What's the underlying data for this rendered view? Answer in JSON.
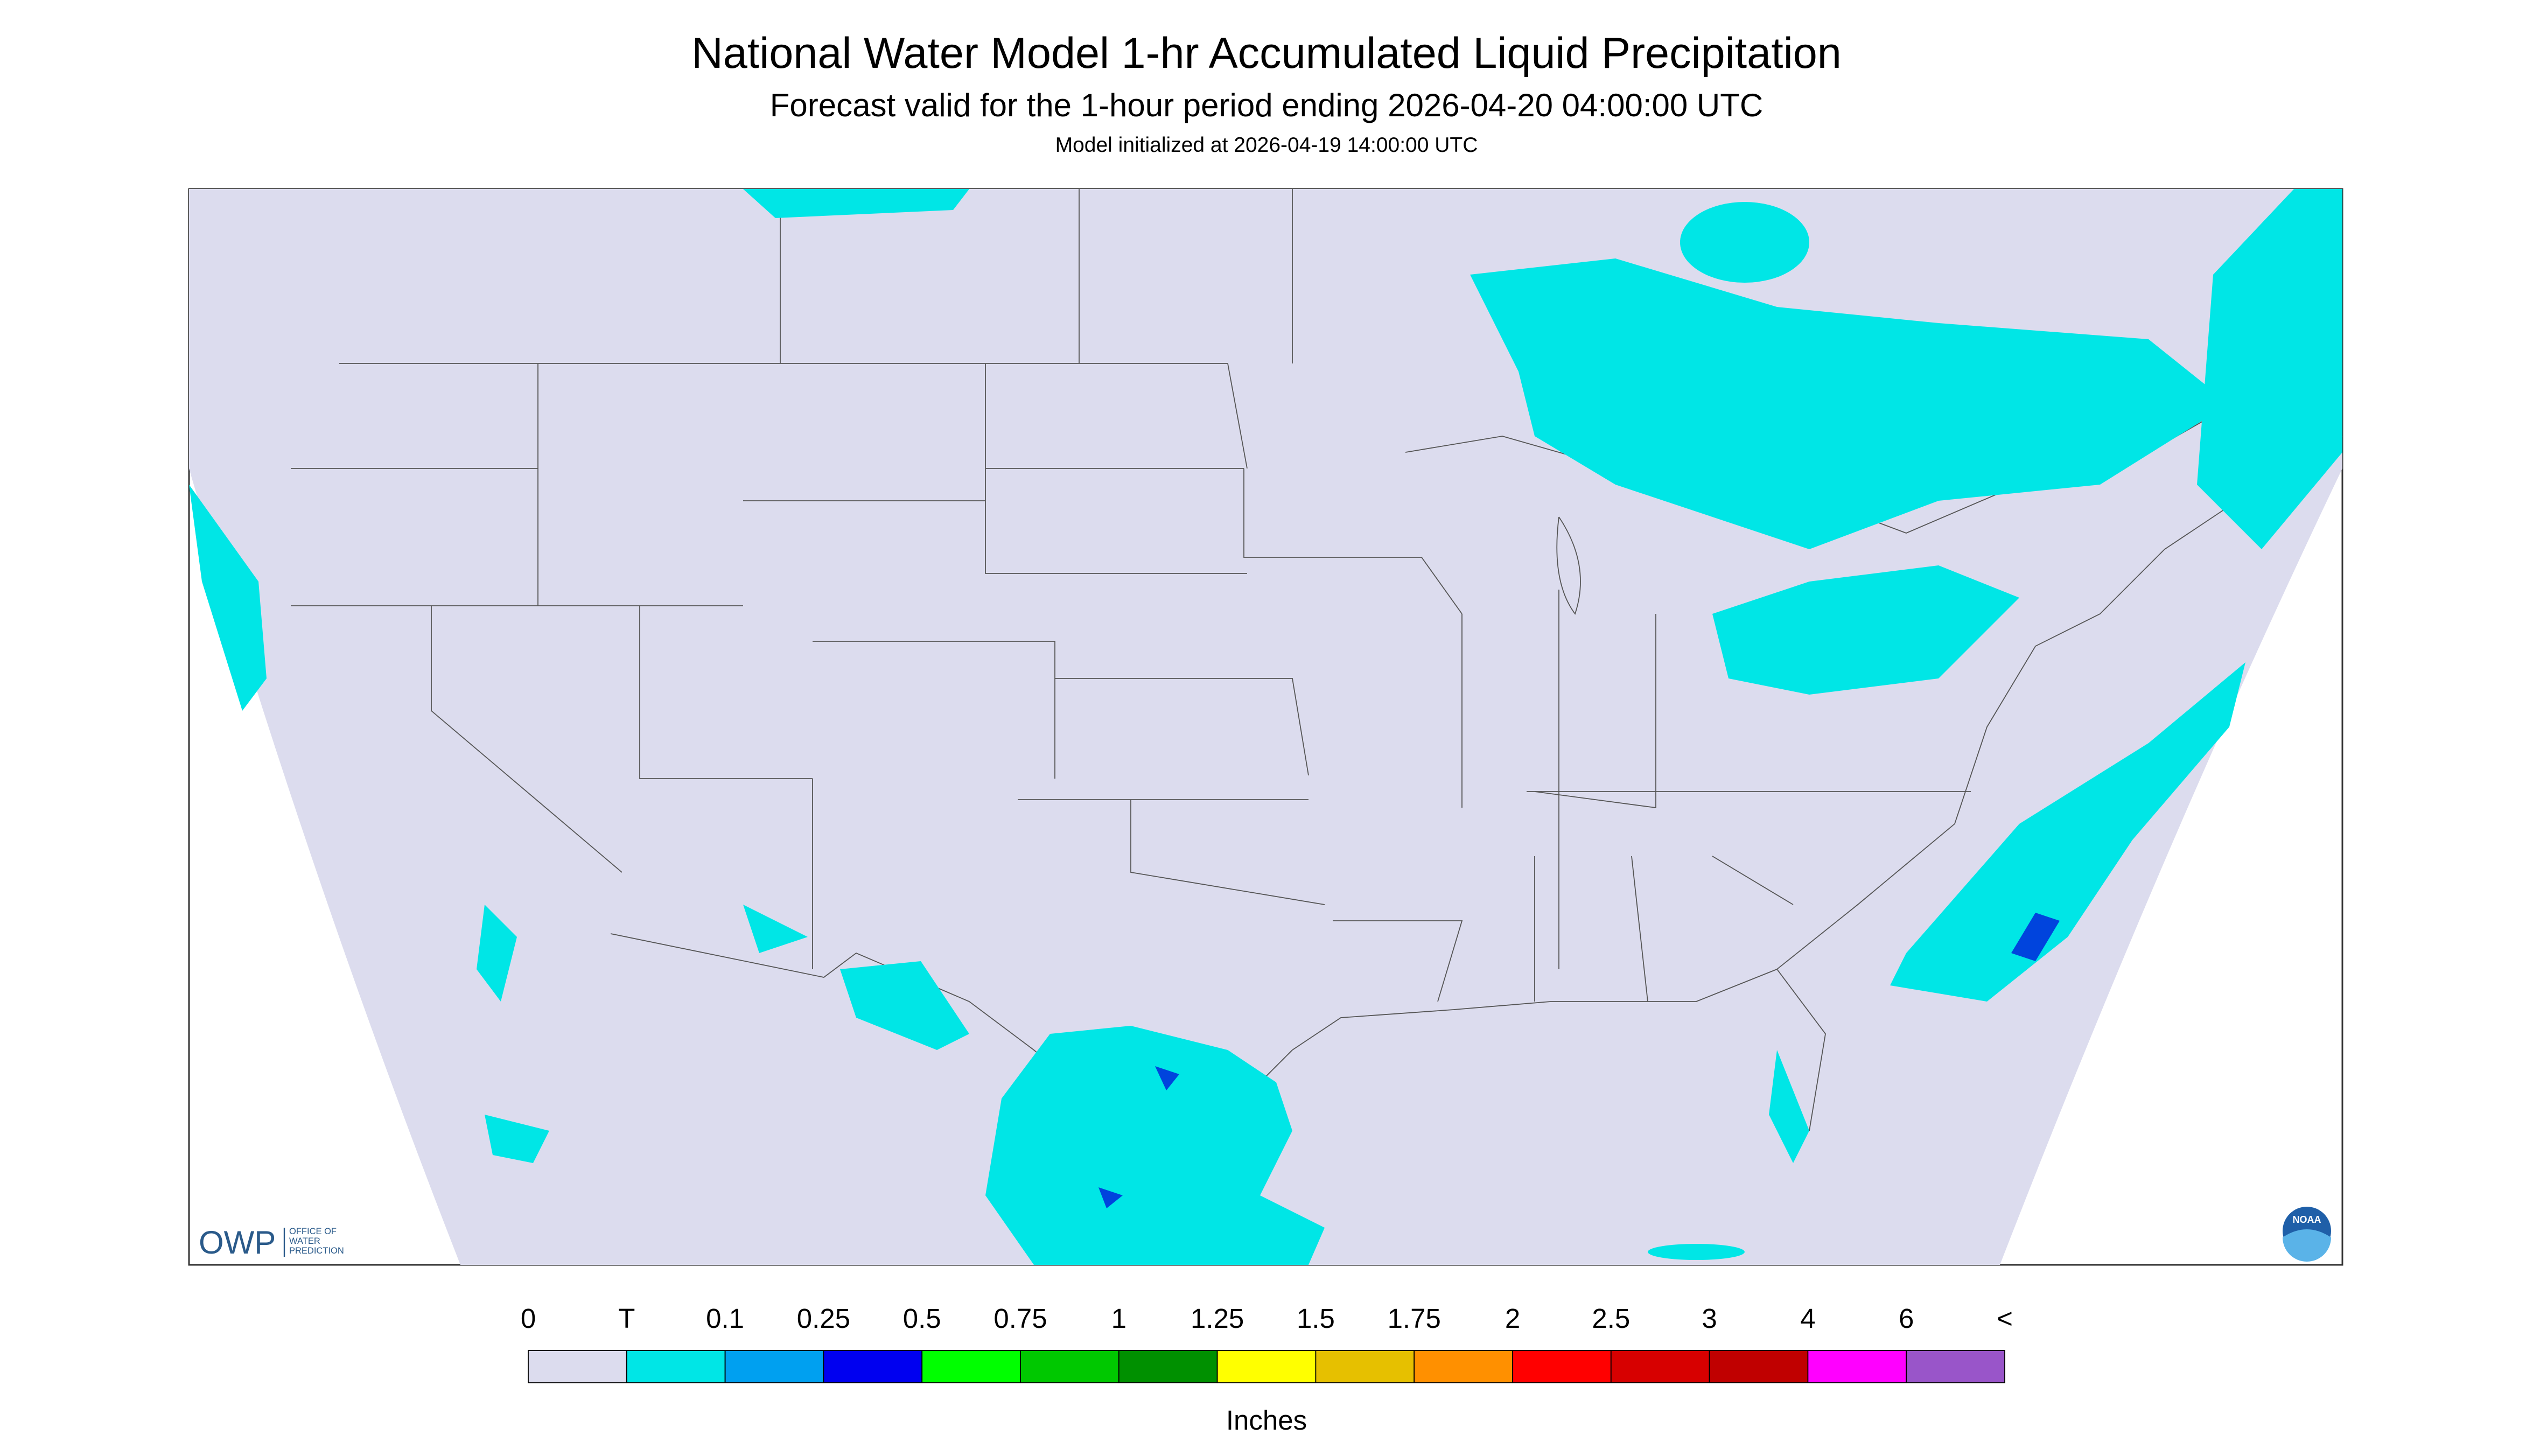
{
  "header": {
    "title": "National Water Model 1-hr Accumulated Liquid Precipitation",
    "subtitle": "Forecast valid for the 1-hour period ending 2026-04-20 04:00:00 UTC",
    "init": "Model initialized at 2026-04-19 14:00:00 UTC"
  },
  "colorbar": {
    "labels": [
      "0",
      "T",
      "0.1",
      "0.25",
      "0.5",
      "0.75",
      "1",
      "1.25",
      "1.5",
      "1.75",
      "2",
      "2.5",
      "3",
      "4",
      "6",
      "<"
    ],
    "colors": [
      "#dcdcee",
      "#00e6e6",
      "#00a0f0",
      "#0000f0",
      "#00ff00",
      "#00c800",
      "#009000",
      "#ffff00",
      "#e6c000",
      "#ff9000",
      "#ff0000",
      "#d70000",
      "#c00000",
      "#ff00ff",
      "#9955c9"
    ],
    "units": "Inches"
  },
  "logos": {
    "owp": "OWP",
    "owp_lines": [
      "OFFICE OF",
      "WATER",
      "PREDICTION"
    ],
    "noaa": "NOAA"
  }
}
